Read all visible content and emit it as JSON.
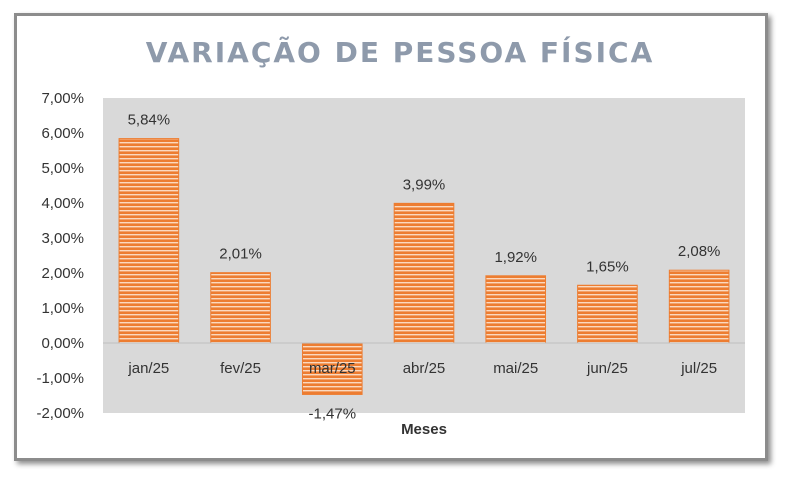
{
  "chart_data": {
    "type": "bar",
    "title": "VARIAÇÃO DE PESSOA FÍSICA",
    "xlabel": "Meses",
    "ylabel": "",
    "categories": [
      "jan/25",
      "fev/25",
      "mar/25",
      "abr/25",
      "mai/25",
      "jun/25",
      "jul/25"
    ],
    "values": [
      5.84,
      2.01,
      -1.47,
      3.99,
      1.92,
      1.65,
      2.08
    ],
    "data_labels": [
      "5,84%",
      "2,01%",
      "-1,47%",
      "3,99%",
      "1,92%",
      "1,65%",
      "2,08%"
    ],
    "ylim": [
      -2,
      7
    ],
    "y_ticks": [
      7,
      6,
      5,
      4,
      3,
      2,
      1,
      0,
      -1,
      -2
    ],
    "y_tick_labels": [
      "7,00%",
      "6,00%",
      "5,00%",
      "4,00%",
      "3,00%",
      "2,00%",
      "1,00%",
      "0,00%",
      "-1,00%",
      "-2,00%"
    ],
    "grid": false,
    "legend": "none",
    "colors": {
      "bar": "#ed7d31",
      "bar_stripe": "#fbd9bf",
      "plot_background": "#d9d9d9",
      "title": "#8e9aab"
    }
  }
}
